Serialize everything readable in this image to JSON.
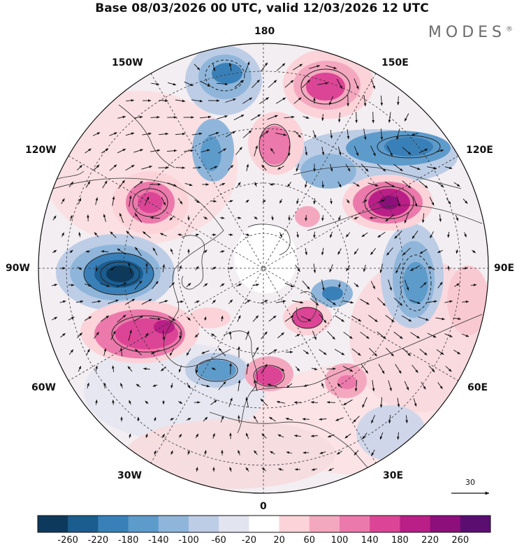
{
  "header": {
    "title": "Base 08/03/2026 00 UTC, valid 12/03/2026 12 UTC"
  },
  "brand": {
    "name": "MODES",
    "mark": "®"
  },
  "map": {
    "projection": "north polar stereographic",
    "longitude_labels": {
      "top": "180",
      "top_right": "150E",
      "upper_right": "120E",
      "right": "90E",
      "lower_right": "60E",
      "bottom_right": "30E",
      "bottom": "0",
      "bottom_left": "30W",
      "lower_left": "60W",
      "left": "90W",
      "upper_left": "120W",
      "top_left": "150W"
    },
    "reference_vector": {
      "value": "30"
    }
  },
  "colorbar": {
    "labels": [
      "-260",
      "-220",
      "-180",
      "-140",
      "-100",
      "-60",
      "-20",
      "20",
      "60",
      "100",
      "140",
      "180",
      "220",
      "260"
    ],
    "colors": [
      "#0d3a5c",
      "#1c5d8f",
      "#3a80b8",
      "#5d9bcb",
      "#8fb6da",
      "#bdcde6",
      "#e2e4f0",
      "#ffffff",
      "#fbd3d8",
      "#f4a8bf",
      "#ec79ab",
      "#dc4596",
      "#b91f86",
      "#8c0f7b",
      "#5a0e70"
    ]
  }
}
